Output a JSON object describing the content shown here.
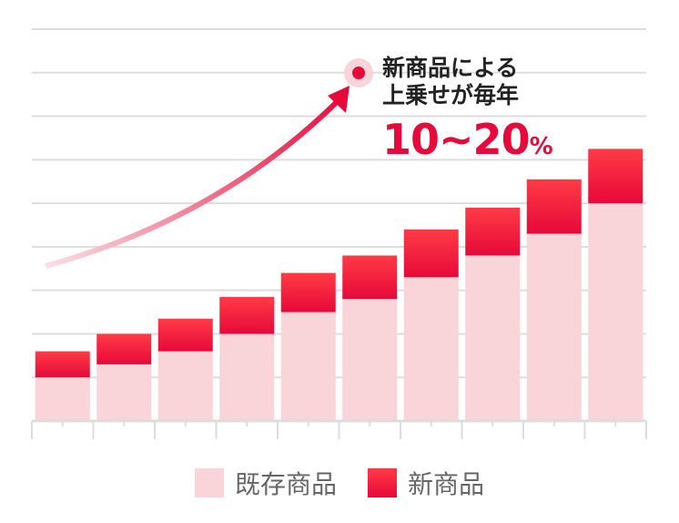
{
  "chart_data": {
    "type": "bar",
    "stacked": true,
    "categories": [
      "",
      "",
      "",
      "",
      "",
      "",
      "",
      "",
      "",
      ""
    ],
    "series": [
      {
        "name": "既存商品",
        "color": "#f9d4d8",
        "values": [
          1.0,
          1.3,
          1.6,
          2.0,
          2.5,
          2.8,
          3.3,
          3.8,
          4.3,
          5.0
        ]
      },
      {
        "name": "新商品",
        "color": "#e6093a",
        "values": [
          0.6,
          0.7,
          0.75,
          0.85,
          0.9,
          1.0,
          1.1,
          1.1,
          1.25,
          1.25
        ]
      }
    ],
    "ylim": [
      0,
      9
    ],
    "grid": true,
    "legend": "bottom",
    "annotation": {
      "line1": "新商品による",
      "line2": "上乗せが毎年",
      "value": "10~20",
      "unit": "%"
    }
  }
}
